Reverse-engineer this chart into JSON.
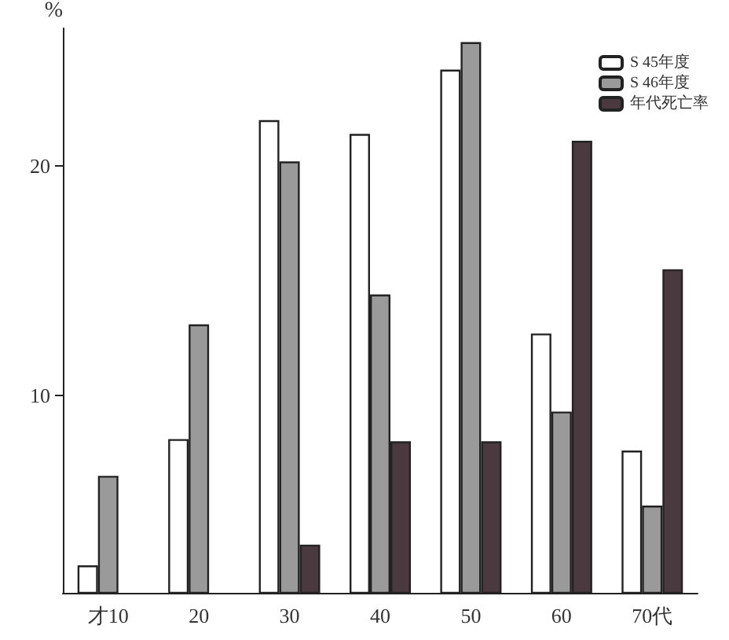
{
  "chart_data": {
    "type": "bar",
    "ylabel": "%",
    "categories": [
      "才10",
      "20",
      "30",
      "40",
      "50",
      "60",
      "70代"
    ],
    "series": [
      {
        "name": "S 45年度",
        "color": "#ffffff",
        "values": [
          2.6,
          8.1,
          22.0,
          21.4,
          24.2,
          12.7,
          7.6
        ]
      },
      {
        "name": "S 46年度",
        "color": "#9a9a9a",
        "values": [
          6.5,
          13.1,
          20.2,
          14.4,
          25.4,
          9.3,
          5.2
        ]
      },
      {
        "name": "年代死亡率",
        "color": "#4a3a40",
        "values": [
          null,
          null,
          3.5,
          8.0,
          8.0,
          21.1,
          15.5
        ]
      }
    ],
    "ylim": [
      1.4,
      26
    ],
    "yticks": [
      10,
      20
    ],
    "legend": "top right",
    "grid": false
  }
}
